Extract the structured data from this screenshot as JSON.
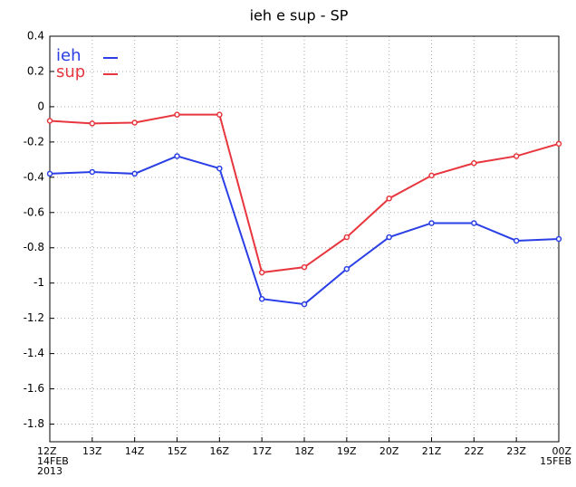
{
  "chart_data": {
    "type": "line",
    "title": "ieh e sup - SP",
    "categories": [
      "12Z\n14FEB\n2013",
      "13Z",
      "14Z",
      "15Z",
      "16Z",
      "17Z",
      "18Z",
      "19Z",
      "20Z",
      "21Z",
      "22Z",
      "23Z",
      "00Z\n15FEB"
    ],
    "series": [
      {
        "name": "ieh",
        "color": "#2a3fe6",
        "values": [
          -0.38,
          -0.37,
          -0.38,
          -0.28,
          -0.35,
          -1.09,
          -1.12,
          -0.92,
          -0.74,
          -0.66,
          -0.66,
          -0.76,
          -0.75
        ]
      },
      {
        "name": "sup",
        "color": "#e8363e",
        "values": [
          -0.08,
          -0.095,
          -0.09,
          -0.045,
          -0.045,
          -0.94,
          -0.91,
          -0.74,
          -0.52,
          -0.39,
          -0.32,
          -0.28,
          -0.21
        ]
      }
    ],
    "ylim": [
      -1.9,
      0.4
    ],
    "yticks": [
      0.4,
      0.2,
      0,
      -0.2,
      -0.4,
      -0.6,
      -0.8,
      -1,
      -1.2,
      -1.4,
      -1.6,
      -1.8
    ],
    "grid": true,
    "legend": "top-left"
  }
}
